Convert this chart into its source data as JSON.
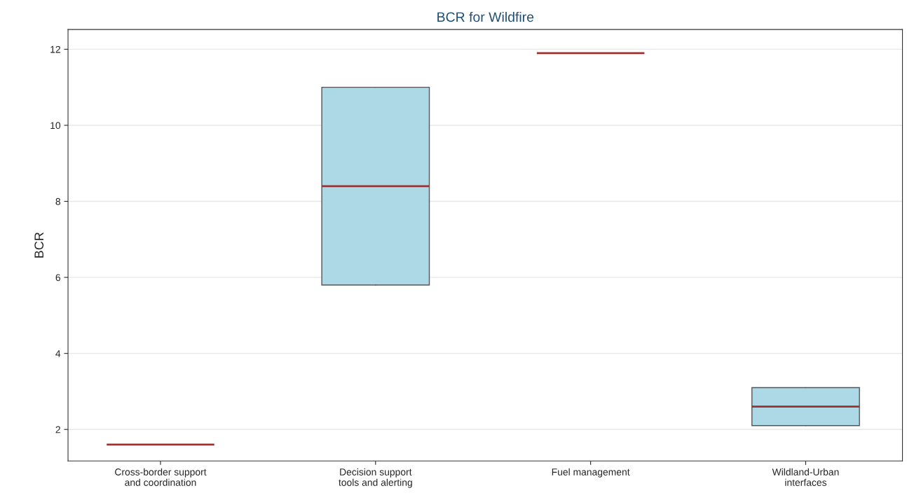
{
  "chart_data": {
    "type": "box",
    "title": "BCR for Wildfire",
    "ylabel": "BCR",
    "categories": [
      "Cross-border support\nand coordination",
      "Decision support\ntools and alerting",
      "Fuel management",
      "Wildland-Urban\ninterfaces"
    ],
    "boxes": [
      {
        "low": 1.6,
        "q1": 1.6,
        "median": 1.6,
        "q3": 1.6,
        "high": 1.6
      },
      {
        "low": 5.8,
        "q1": 5.8,
        "median": 8.4,
        "q3": 11.0,
        "high": 11.0
      },
      {
        "low": 11.9,
        "q1": 11.9,
        "median": 11.9,
        "q3": 11.9,
        "high": 11.9
      },
      {
        "low": 2.1,
        "q1": 2.1,
        "median": 2.6,
        "q3": 3.1,
        "high": 3.1
      }
    ],
    "color": "#add8e6",
    "ylim": [
      1.17,
      12.52
    ],
    "yticks": [
      2,
      4,
      6,
      8,
      10,
      12
    ],
    "grid": "y"
  }
}
